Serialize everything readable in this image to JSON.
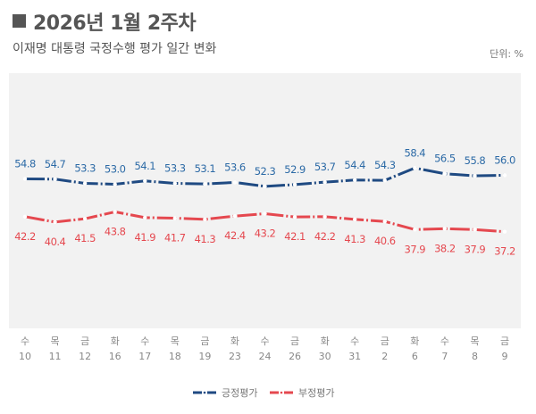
{
  "title": "2026년 1월 2주차",
  "subtitle": "이재명 대통령 국정수행 평가 일간 변화",
  "unit": "단위: %",
  "chart_data": {
    "type": "line",
    "title": "2026년 1월 2주차",
    "subtitle": "이재명 대통령 국정수행 평가 일간 변화",
    "categories": [
      {
        "day": "수",
        "date": "10"
      },
      {
        "day": "목",
        "date": "11"
      },
      {
        "day": "금",
        "date": "12"
      },
      {
        "day": "화",
        "date": "16"
      },
      {
        "day": "수",
        "date": "17"
      },
      {
        "day": "목",
        "date": "18"
      },
      {
        "day": "금",
        "date": "19"
      },
      {
        "day": "화",
        "date": "23"
      },
      {
        "day": "수",
        "date": "24"
      },
      {
        "day": "금",
        "date": "26"
      },
      {
        "day": "화",
        "date": "30"
      },
      {
        "day": "수",
        "date": "31"
      },
      {
        "day": "금",
        "date": "2"
      },
      {
        "day": "화",
        "date": "6"
      },
      {
        "day": "수",
        "date": "7"
      },
      {
        "day": "목",
        "date": "8"
      },
      {
        "day": "금",
        "date": "9"
      }
    ],
    "series": [
      {
        "name": "긍정평가",
        "color": "#1f4a82",
        "label_color": "#2c6aa6",
        "label_position": "above",
        "values": [
          54.8,
          54.7,
          53.3,
          53.0,
          54.1,
          53.3,
          53.1,
          53.6,
          52.3,
          52.9,
          53.7,
          54.4,
          54.3,
          58.4,
          56.5,
          55.8,
          56.0
        ]
      },
      {
        "name": "부정평가",
        "color": "#e5484f",
        "label_color": "#e5484f",
        "label_position": "below",
        "values": [
          42.2,
          40.4,
          41.5,
          43.8,
          41.9,
          41.7,
          41.3,
          42.4,
          43.2,
          42.1,
          42.2,
          41.3,
          40.6,
          37.9,
          38.2,
          37.9,
          37.2
        ]
      }
    ],
    "ylim": [
      5,
      90
    ],
    "grid": false,
    "legend_position": "bottom",
    "line_style": "dash-dot"
  }
}
